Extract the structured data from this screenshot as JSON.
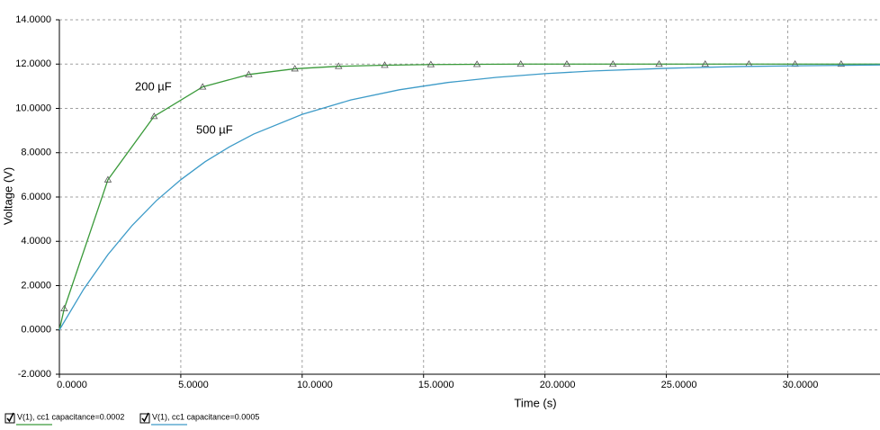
{
  "chart_data": {
    "type": "line",
    "x_label": "Time (s)",
    "y_label": "Voltage (V)",
    "xlim": [
      0,
      33.8
    ],
    "ylim": [
      -2,
      14
    ],
    "grid": true,
    "xticks": [
      {
        "value": 0,
        "label": "0.0000"
      },
      {
        "value": 5,
        "label": "5.0000"
      },
      {
        "value": 10,
        "label": "10.0000"
      },
      {
        "value": 15,
        "label": "15.0000"
      },
      {
        "value": 20,
        "label": "20.0000"
      },
      {
        "value": 25,
        "label": "25.0000"
      },
      {
        "value": 30,
        "label": "30.0000"
      }
    ],
    "yticks": [
      {
        "value": -2,
        "label": "-2.0000"
      },
      {
        "value": 0,
        "label": "0.0000"
      },
      {
        "value": 2,
        "label": "2.0000"
      },
      {
        "value": 4,
        "label": "4.0000"
      },
      {
        "value": 6,
        "label": "6.0000"
      },
      {
        "value": 8,
        "label": "8.0000"
      },
      {
        "value": 10,
        "label": "10.0000"
      },
      {
        "value": 12,
        "label": "12.0000"
      },
      {
        "value": 14,
        "label": "14.0000"
      }
    ],
    "annotations": [
      "200 µF",
      "500 µF"
    ],
    "series": [
      {
        "name": "V(1), cc1 capacitance=0.0002",
        "color": "#3a9a3a",
        "marker": "triangle",
        "x": [
          0,
          0.2,
          2.0,
          3.9,
          5.9,
          7.8,
          9.7,
          11.5,
          13.4,
          15.3,
          17.2,
          19.0,
          20.9,
          22.8,
          24.7,
          26.6,
          28.4,
          30.3,
          32.2,
          33.8
        ],
        "values": [
          0,
          0.96,
          6.78,
          9.64,
          10.97,
          11.53,
          11.79,
          11.9,
          11.95,
          11.98,
          11.99,
          12,
          12,
          12,
          12,
          12,
          12,
          12,
          12,
          12
        ]
      },
      {
        "name": "V(1), cc1 capacitance=0.0005",
        "color": "#3d9bc8",
        "x": [
          0,
          1,
          2,
          3,
          4,
          5,
          6,
          7,
          8,
          10,
          12,
          14,
          16,
          18,
          20,
          22,
          25,
          28,
          31,
          33.8
        ],
        "values": [
          0,
          1.84,
          3.4,
          4.72,
          5.84,
          6.78,
          7.59,
          8.26,
          8.84,
          9.73,
          10.38,
          10.84,
          11.17,
          11.4,
          11.57,
          11.69,
          11.81,
          11.89,
          11.93,
          11.96
        ]
      }
    ]
  }
}
